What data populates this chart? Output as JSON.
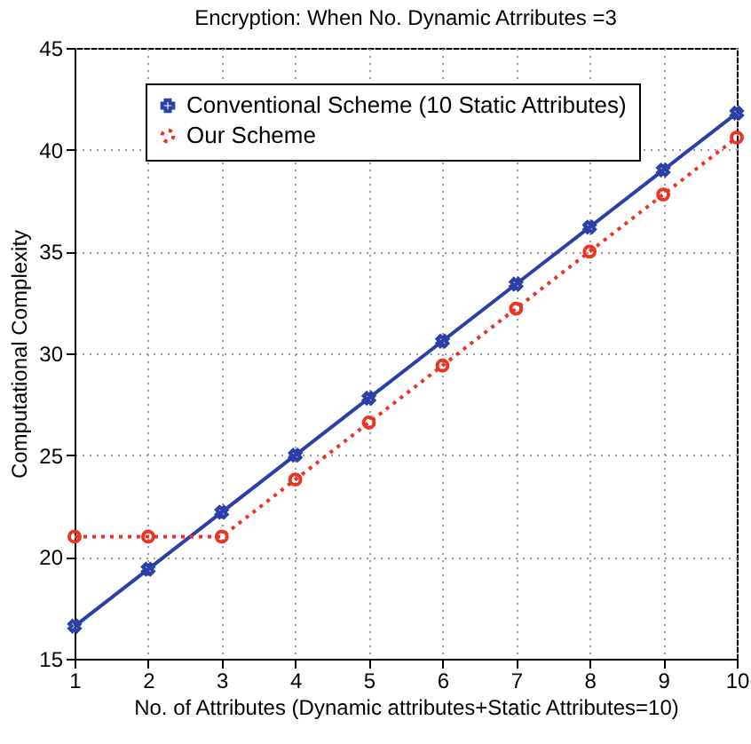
{
  "chart_data": {
    "type": "line",
    "title": "Encryption: When No. Dynamic Atrributes =3",
    "xlabel": "No. of Attributes (Dynamic attributes+Static Attributes=10)",
    "ylabel": "Computational Complexity",
    "x": [
      1,
      2,
      3,
      4,
      5,
      6,
      7,
      8,
      9,
      10
    ],
    "series": [
      {
        "name": "Conventional Scheme (10 Static Attributes)",
        "color": "#2b3fa8",
        "marker": "cross",
        "line_style": "solid",
        "values": [
          16.6,
          19.4,
          22.2,
          25.0,
          27.8,
          30.6,
          33.4,
          36.2,
          39.0,
          41.8
        ]
      },
      {
        "name": "Our Scheme",
        "color": "#ee3322",
        "marker": "circle",
        "line_style": "dotted",
        "values": [
          21,
          21,
          21,
          23.8,
          26.6,
          29.4,
          32.2,
          35.0,
          37.8,
          40.6
        ]
      }
    ],
    "xlim": [
      1,
      10
    ],
    "xticks": [
      1,
      2,
      3,
      4,
      5,
      6,
      7,
      8,
      9,
      10
    ],
    "ylim": [
      15,
      45
    ],
    "yticks": [
      15,
      20,
      25,
      30,
      35,
      40,
      45
    ],
    "grid": true,
    "legend": "top left"
  }
}
